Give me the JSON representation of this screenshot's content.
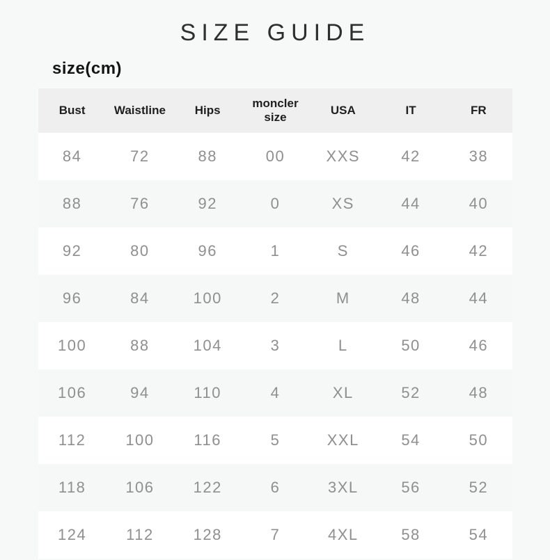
{
  "page": {
    "title": "SIZE GUIDE",
    "subtitle": "size(cm)"
  },
  "chart_data": {
    "type": "table",
    "title": "SIZE GUIDE",
    "unit_label": "size(cm)",
    "columns": [
      "Bust",
      "Waistline",
      "Hips",
      "moncler size",
      "USA",
      "IT",
      "FR"
    ],
    "rows": [
      [
        "84",
        "72",
        "88",
        "00",
        "XXS",
        "42",
        "38"
      ],
      [
        "88",
        "76",
        "92",
        "0",
        "XS",
        "44",
        "40"
      ],
      [
        "92",
        "80",
        "96",
        "1",
        "S",
        "46",
        "42"
      ],
      [
        "96",
        "84",
        "100",
        "2",
        "M",
        "48",
        "44"
      ],
      [
        "100",
        "88",
        "104",
        "3",
        "L",
        "50",
        "46"
      ],
      [
        "106",
        "94",
        "110",
        "4",
        "XL",
        "52",
        "48"
      ],
      [
        "112",
        "100",
        "116",
        "5",
        "XXL",
        "54",
        "50"
      ],
      [
        "118",
        "106",
        "122",
        "6",
        "3XL",
        "56",
        "52"
      ],
      [
        "124",
        "112",
        "128",
        "7",
        "4XL",
        "58",
        "54"
      ]
    ],
    "layout": {
      "row_striping": "odd rows white, even rows light gray",
      "header_background": "#efefef",
      "text_alignment": "center"
    }
  },
  "colors": {
    "page_bg": "#f7f8f8",
    "header_bg": "#efefef",
    "row_bg": "#ffffff",
    "row_alt_bg": "#f6f7f7",
    "header_text": "#1f1f1f",
    "data_text": "#8f8f8f",
    "title_text": "#2e2e2e"
  }
}
